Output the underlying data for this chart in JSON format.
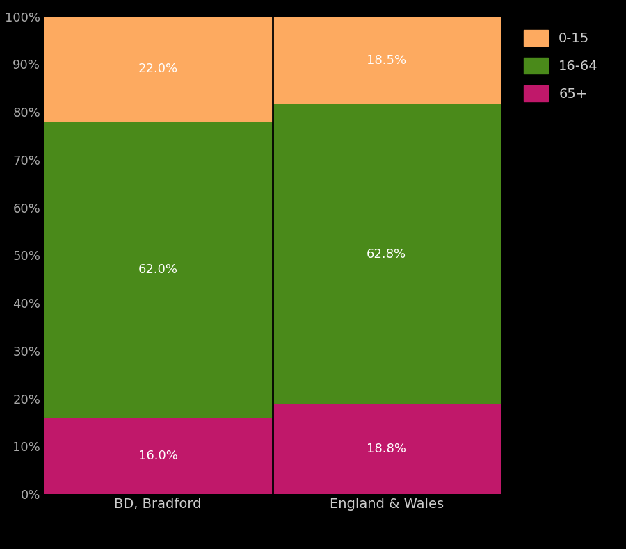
{
  "categories": [
    "BD, Bradford",
    "England & Wales"
  ],
  "segments": {
    "65+": [
      16.0,
      18.8
    ],
    "16-64": [
      62.0,
      62.8
    ],
    "0-15": [
      22.0,
      18.5
    ]
  },
  "colors": {
    "65+": "#C0186A",
    "16-64": "#4A8A1A",
    "0-15": "#FDAA60"
  },
  "label_colors": {
    "65+": "white",
    "16-64": "white",
    "0-15": "white"
  },
  "background_color": "#000000",
  "tick_color": "#AAAAAA",
  "label_color": "#CCCCCC",
  "yticks": [
    0,
    10,
    20,
    30,
    40,
    50,
    60,
    70,
    80,
    90,
    100
  ],
  "ytick_labels": [
    "0%",
    "10%",
    "20%",
    "30%",
    "40%",
    "50%",
    "60%",
    "70%",
    "80%",
    "90%",
    "100%"
  ],
  "legend_text_color": "#CCCCCC",
  "bar_width": 1.0,
  "legend_order": [
    "0-15",
    "16-64",
    "65+"
  ],
  "annotation_fontsize": 13,
  "tick_fontsize": 13,
  "label_fontsize": 14,
  "legend_fontsize": 14,
  "separator_color": "#000000"
}
